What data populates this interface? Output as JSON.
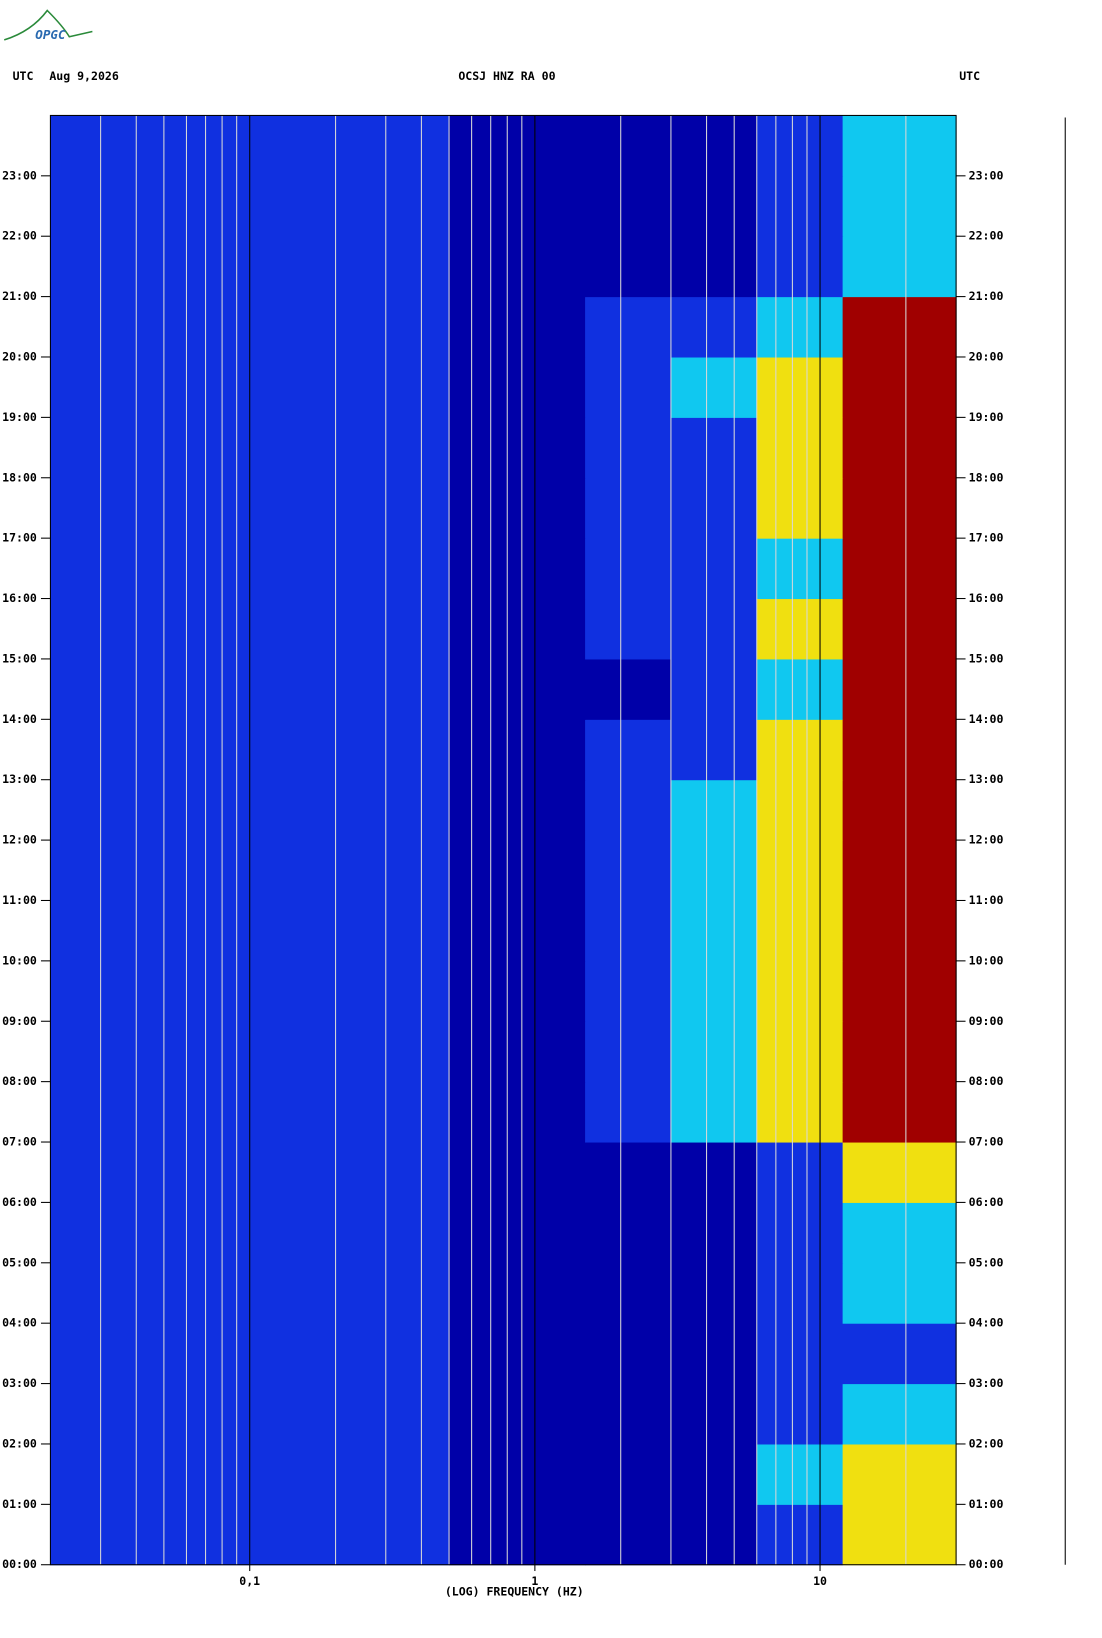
{
  "chart_data": {
    "type": "spectrogram",
    "logo": "OPGC",
    "left_header": "UTC",
    "date": "Aug 9,2026",
    "title": "OCSJ HNZ RA 00",
    "right_header": "UTC",
    "xlabel": "(LOG) FREQUENCY (HZ)",
    "xscale": "log",
    "xlim": [
      0.02,
      30
    ],
    "xticks": [
      {
        "value": 0.1,
        "label": "0,1"
      },
      1,
      10
    ],
    "xminor": [
      0.03,
      0.04,
      0.05,
      0.06,
      0.07,
      0.08,
      0.09,
      0.2,
      0.3,
      0.4,
      0.5,
      0.6,
      0.7,
      0.8,
      0.9,
      2,
      3,
      4,
      5,
      6,
      7,
      8,
      9,
      20
    ],
    "ylim": [
      0,
      24
    ],
    "yticks": [
      {
        "value": 0,
        "label": "00:00"
      },
      {
        "value": 1,
        "label": "01:00"
      },
      {
        "value": 2,
        "label": "02:00"
      },
      {
        "value": 3,
        "label": "03:00"
      },
      {
        "value": 4,
        "label": "04:00"
      },
      {
        "value": 5,
        "label": "05:00"
      },
      {
        "value": 6,
        "label": "06:00"
      },
      {
        "value": 7,
        "label": "07:00"
      },
      {
        "value": 8,
        "label": "08:00"
      },
      {
        "value": 9,
        "label": "09:00"
      },
      {
        "value": 10,
        "label": "10:00"
      },
      {
        "value": 11,
        "label": "11:00"
      },
      {
        "value": 12,
        "label": "12:00"
      },
      {
        "value": 13,
        "label": "13:00"
      },
      {
        "value": 14,
        "label": "14:00"
      },
      {
        "value": 15,
        "label": "15:00"
      },
      {
        "value": 16,
        "label": "16:00"
      },
      {
        "value": 17,
        "label": "17:00"
      },
      {
        "value": 18,
        "label": "18:00"
      },
      {
        "value": 19,
        "label": "19:00"
      },
      {
        "value": 20,
        "label": "20:00"
      },
      {
        "value": 21,
        "label": "21:00"
      },
      {
        "value": 22,
        "label": "22:00"
      },
      {
        "value": 23,
        "label": "23:00"
      }
    ],
    "freq_bins": [
      0.02,
      0.1,
      0.5,
      1.5,
      3,
      6,
      12,
      30
    ],
    "y_bins": [
      0,
      1,
      2,
      3,
      4,
      5,
      6,
      7,
      8,
      9,
      10,
      11,
      12,
      13,
      14,
      15,
      16,
      17,
      18,
      19,
      20,
      21,
      22,
      23,
      24
    ],
    "colors": [
      "#0000a8",
      "#1030e0",
      "#10c8f0",
      "#f0e010",
      "#a00000"
    ],
    "z": [
      [
        1,
        1,
        0,
        0,
        0,
        1,
        3
      ],
      [
        1,
        1,
        0,
        0,
        0,
        2,
        3
      ],
      [
        1,
        1,
        0,
        0,
        0,
        1,
        2
      ],
      [
        1,
        1,
        0,
        0,
        0,
        1,
        1
      ],
      [
        1,
        1,
        0,
        0,
        0,
        1,
        2
      ],
      [
        1,
        1,
        0,
        0,
        0,
        1,
        2
      ],
      [
        1,
        1,
        0,
        0,
        0,
        1,
        3
      ],
      [
        1,
        1,
        0,
        1,
        2,
        3,
        4
      ],
      [
        1,
        1,
        0,
        1,
        2,
        3,
        4
      ],
      [
        1,
        1,
        0,
        1,
        2,
        3,
        4
      ],
      [
        1,
        1,
        0,
        1,
        2,
        3,
        4
      ],
      [
        1,
        1,
        0,
        1,
        2,
        3,
        4
      ],
      [
        1,
        1,
        0,
        1,
        2,
        3,
        4
      ],
      [
        1,
        1,
        0,
        1,
        1,
        3,
        4
      ],
      [
        1,
        1,
        0,
        0,
        1,
        2,
        4
      ],
      [
        1,
        1,
        0,
        1,
        1,
        3,
        4
      ],
      [
        1,
        1,
        0,
        1,
        1,
        2,
        4
      ],
      [
        1,
        1,
        0,
        1,
        1,
        3,
        4
      ],
      [
        1,
        1,
        0,
        1,
        1,
        3,
        4
      ],
      [
        1,
        1,
        0,
        1,
        2,
        3,
        4
      ],
      [
        1,
        1,
        0,
        1,
        1,
        2,
        4
      ],
      [
        1,
        1,
        0,
        0,
        0,
        1,
        2
      ],
      [
        1,
        1,
        0,
        0,
        0,
        1,
        2
      ],
      [
        1,
        1,
        0,
        0,
        0,
        1,
        2
      ]
    ]
  }
}
